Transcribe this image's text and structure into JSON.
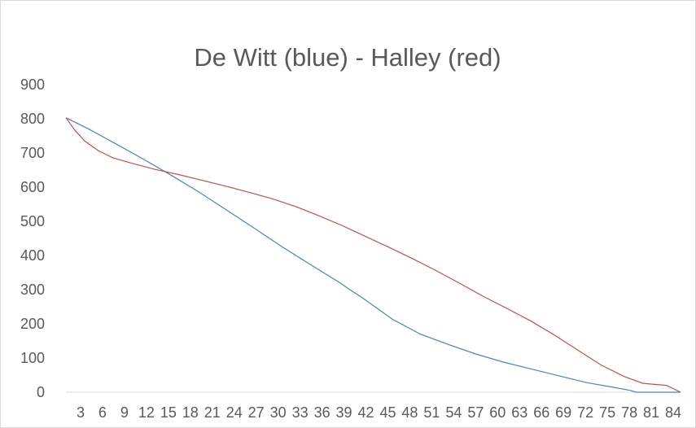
{
  "chart_data": {
    "type": "line",
    "title": "De Witt (blue) - Halley (red)",
    "xlabel": "",
    "ylabel": "",
    "ylim": [
      0,
      900
    ],
    "yticks": [
      "0",
      "100",
      "200",
      "300",
      "400",
      "500",
      "600",
      "700",
      "800",
      "900"
    ],
    "xtick_labels": [
      "3",
      "6",
      "9",
      "12",
      "15",
      "18",
      "21",
      "24",
      "27",
      "30",
      "33",
      "36",
      "39",
      "42",
      "45",
      "48",
      "51",
      "54",
      "57",
      "60",
      "63",
      "66",
      "69",
      "72",
      "75",
      "78",
      "81",
      "84"
    ],
    "x_start": 1,
    "x_end": 85,
    "grid": false,
    "legend": "none",
    "series": [
      {
        "color": "#4f81bd",
        "points": [
          [
            1,
            803
          ],
          [
            5,
            771
          ],
          [
            10,
            727
          ],
          [
            15,
            682
          ],
          [
            20,
            635
          ],
          [
            25,
            586
          ],
          [
            30,
            533
          ],
          [
            35,
            480
          ],
          [
            40,
            426
          ],
          [
            45,
            375
          ],
          [
            50,
            325
          ],
          [
            55,
            271
          ],
          [
            60,
            213
          ],
          [
            65,
            170
          ],
          [
            70,
            140
          ],
          [
            75,
            112
          ],
          [
            80,
            88
          ],
          [
            85,
            68
          ],
          [
            90,
            48
          ],
          [
            95,
            28
          ],
          [
            100,
            14
          ],
          [
            103,
            5
          ],
          [
            104,
            0
          ],
          [
            110,
            0
          ],
          [
            112,
            0
          ]
        ]
      },
      {
        "color": "#c0504d",
        "points": [
          [
            1,
            803
          ],
          [
            3,
            765
          ],
          [
            5,
            735
          ],
          [
            8,
            706
          ],
          [
            11,
            686
          ],
          [
            15,
            670
          ],
          [
            20,
            652
          ],
          [
            25,
            637
          ],
          [
            30,
            620
          ],
          [
            35,
            603
          ],
          [
            40,
            585
          ],
          [
            45,
            566
          ],
          [
            50,
            543
          ],
          [
            55,
            516
          ],
          [
            60,
            487
          ],
          [
            65,
            455
          ],
          [
            70,
            423
          ],
          [
            75,
            390
          ],
          [
            80,
            355
          ],
          [
            85,
            318
          ],
          [
            90,
            280
          ],
          [
            95,
            245
          ],
          [
            100,
            209
          ],
          [
            105,
            168
          ],
          [
            110,
            124
          ],
          [
            115,
            80
          ],
          [
            120,
            46
          ],
          [
            124,
            26
          ],
          [
            129,
            20
          ],
          [
            132,
            0
          ]
        ]
      }
    ]
  }
}
